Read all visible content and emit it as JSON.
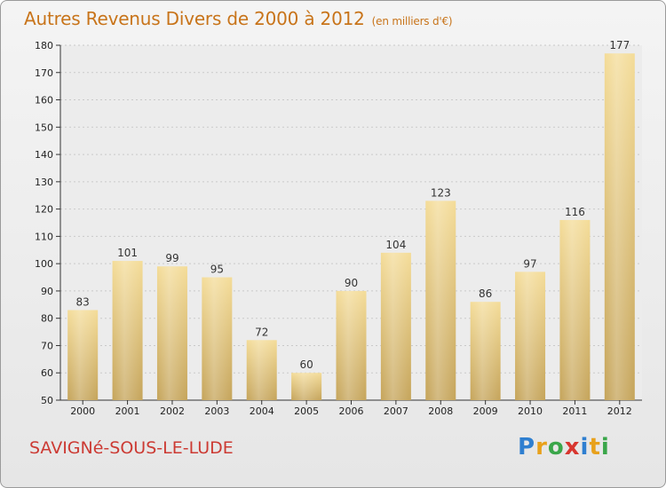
{
  "header": {
    "title": "Autres Revenus Divers de 2000 à 2012",
    "unit": "(en milliers d'€)"
  },
  "footer": {
    "location": "SAVIGNé-SOUS-LE-LUDE",
    "brand": "Proxiti",
    "brand_letters": [
      {
        "char": "P",
        "color": "#2f7fd0"
      },
      {
        "char": "r",
        "color": "#e8a11c"
      },
      {
        "char": "o",
        "color": "#3aa64a"
      },
      {
        "char": "x",
        "color": "#d8362f"
      },
      {
        "char": "i",
        "color": "#2f7fd0"
      },
      {
        "char": "t",
        "color": "#e8a11c"
      },
      {
        "char": "i",
        "color": "#3aa64a"
      }
    ]
  },
  "colors": {
    "title": "#c8741a",
    "location": "#cc3a33",
    "bar_top": "#f4dc98",
    "bar_bottom": "#c5a45a"
  },
  "chart_data": {
    "type": "bar",
    "title": "Autres Revenus Divers de 2000 à 2012",
    "subtitle": "(en milliers d'€)",
    "xlabel": "",
    "ylabel": "",
    "categories": [
      "2000",
      "2001",
      "2002",
      "2003",
      "2004",
      "2005",
      "2006",
      "2007",
      "2008",
      "2009",
      "2010",
      "2011",
      "2012"
    ],
    "values": [
      83,
      101,
      99,
      95,
      72,
      60,
      90,
      104,
      123,
      86,
      97,
      116,
      177
    ],
    "ylim": [
      50,
      180
    ],
    "yticks": [
      50,
      60,
      70,
      80,
      90,
      100,
      110,
      120,
      130,
      140,
      150,
      160,
      170,
      180
    ],
    "grid": true,
    "legend": "none"
  }
}
